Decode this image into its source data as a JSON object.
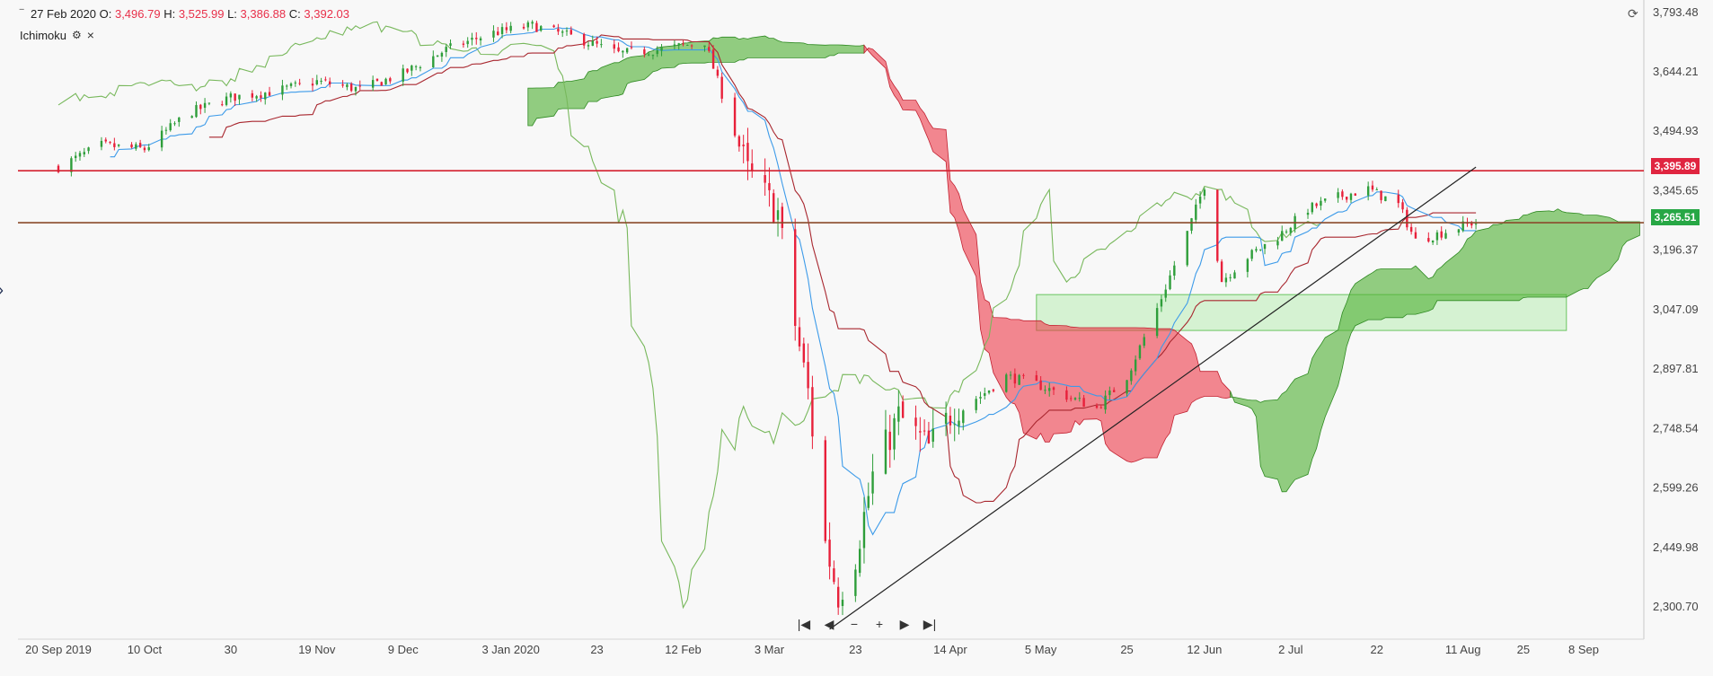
{
  "legend": {
    "date": "27 Feb 2020",
    "open_label": "O:",
    "open": "3,496.79",
    "high_label": "H:",
    "high": "3,525.99",
    "low_label": "L:",
    "low": "3,386.88",
    "close_label": "C:",
    "close": "3,392.03",
    "indicator": "Ichimoku"
  },
  "nav": {
    "first": "|◀",
    "prev": "◀",
    "zoom_out": "−",
    "zoom_in": "+",
    "next": "▶",
    "last": "▶|"
  },
  "colors": {
    "up": "#2e9e3a",
    "down": "#e8203a",
    "tenkan": "#3d9be9",
    "kijun": "#a8262e",
    "chikou": "#78b85c",
    "cloud_bull": "#4caf30",
    "cloud_bear": "#ef3a4a",
    "resistance": "#d4202f",
    "last_line": "#8b4a2b",
    "rect_fill": "#b8ecb2",
    "background": "#f8f8f8"
  },
  "chart_data": {
    "type": "candlestick",
    "y_ticks": [
      "3,793.48",
      "3,644.21",
      "3,494.93",
      "3,345.65",
      "3,196.37",
      "3,047.09",
      "2,897.81",
      "2,748.54",
      "2,599.26",
      "2,449.98",
      "2,300.70"
    ],
    "x_ticks": [
      "20 Sep 2019",
      "10 Oct",
      "30",
      "19 Nov",
      "9 Dec",
      "3 Jan 2020",
      "23",
      "12 Feb",
      "3 Mar",
      "23",
      "14 Apr",
      "5 May",
      "25",
      "12 Jun",
      "2 Jul",
      "22",
      "11 Aug",
      "25",
      "8 Sep"
    ],
    "ylim": [
      2220,
      3820
    ],
    "price_lines": [
      {
        "label": "3,395.89",
        "value": 3395.89
      },
      {
        "label": "3,265.51",
        "value": 3265.51
      }
    ],
    "trendline": {
      "start": [
        "2020-03-17",
        2245
      ],
      "end": [
        "2020-08-14",
        3405
      ]
    },
    "highlight_zone": {
      "from": [
        "2020-05-04",
        2995
      ],
      "to": [
        "2020-09-04",
        3085
      ]
    },
    "close_series": [
      [
        "2019-09-20",
        3405
      ],
      [
        "2019-09-30",
        3460
      ],
      [
        "2019-10-10",
        3450
      ],
      [
        "2019-10-20",
        3540
      ],
      [
        "2019-10-30",
        3580
      ],
      [
        "2019-11-09",
        3595
      ],
      [
        "2019-11-19",
        3620
      ],
      [
        "2019-11-29",
        3600
      ],
      [
        "2019-12-09",
        3640
      ],
      [
        "2019-12-19",
        3700
      ],
      [
        "2019-12-29",
        3740
      ],
      [
        "2020-01-08",
        3760
      ],
      [
        "2020-01-18",
        3730
      ],
      [
        "2020-01-28",
        3690
      ],
      [
        "2020-02-07",
        3700
      ],
      [
        "2020-02-17",
        3720
      ],
      [
        "2020-02-27",
        3392
      ],
      [
        "2020-03-05",
        3290
      ],
      [
        "2020-03-09",
        3010
      ],
      [
        "2020-03-12",
        2840
      ],
      [
        "2020-03-16",
        2460
      ],
      [
        "2020-03-19",
        2330
      ],
      [
        "2020-03-23",
        2430
      ],
      [
        "2020-03-27",
        2630
      ],
      [
        "2020-04-02",
        2780
      ],
      [
        "2020-04-09",
        2700
      ],
      [
        "2020-04-15",
        2800
      ],
      [
        "2020-04-21",
        2830
      ],
      [
        "2020-04-27",
        2880
      ],
      [
        "2020-05-04",
        2860
      ],
      [
        "2020-05-11",
        2830
      ],
      [
        "2020-05-18",
        2800
      ],
      [
        "2020-05-25",
        2880
      ],
      [
        "2020-06-01",
        3050
      ],
      [
        "2020-06-08",
        3240
      ],
      [
        "2020-06-12",
        3360
      ],
      [
        "2020-06-16",
        3120
      ],
      [
        "2020-06-22",
        3180
      ],
      [
        "2020-06-29",
        3230
      ],
      [
        "2020-07-06",
        3300
      ],
      [
        "2020-07-13",
        3330
      ],
      [
        "2020-07-20",
        3350
      ],
      [
        "2020-07-27",
        3310
      ],
      [
        "2020-07-31",
        3220
      ],
      [
        "2020-08-06",
        3240
      ],
      [
        "2020-08-13",
        3265
      ]
    ]
  }
}
